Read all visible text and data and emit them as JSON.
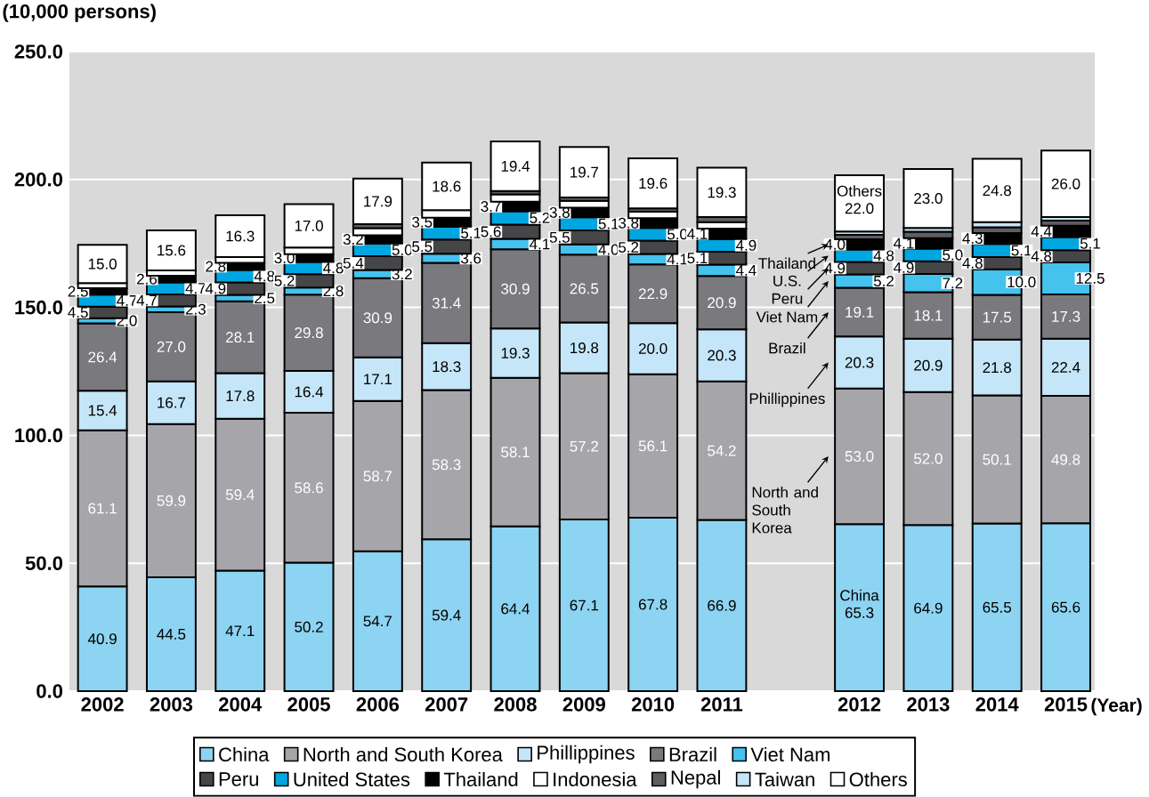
{
  "chart_data": {
    "type": "bar",
    "stacked": true,
    "ylabel": "(10,000 persons)",
    "xlabel": "(Year)",
    "categories": [
      "2002",
      "2003",
      "2004",
      "2005",
      "2006",
      "2007",
      "2008",
      "2009",
      "2010",
      "2011",
      null,
      "2012",
      "2013",
      "2014",
      "2015"
    ],
    "ylim": [
      0,
      250
    ],
    "yticks": [
      {
        "value": 0,
        "label": "0.0"
      },
      {
        "value": 50,
        "label": "50.0"
      },
      {
        "value": 100,
        "label": "100.0"
      },
      {
        "value": 150,
        "label": "150.0"
      },
      {
        "value": 200,
        "label": "200.0"
      },
      {
        "value": 250,
        "label": "250.0"
      }
    ],
    "grid": "y",
    "legend": "bottom",
    "series": [
      {
        "name": "China",
        "color": "#8dd4f2",
        "values": [
          40.9,
          44.5,
          47.1,
          50.2,
          54.7,
          59.4,
          64.4,
          67.1,
          67.8,
          66.9,
          null,
          65.3,
          64.9,
          65.5,
          65.6
        ],
        "value_labels": [
          "40.9",
          "44.5",
          "47.1",
          "50.2",
          "54.7",
          "59.4",
          "64.4",
          "67.1",
          "67.8",
          "66.9",
          null,
          "65.3",
          "64.9",
          "65.5",
          "65.6"
        ]
      },
      {
        "name": "North and South Korea",
        "color": "#a6a6aa",
        "values": [
          61.1,
          59.9,
          59.4,
          58.6,
          58.7,
          58.3,
          58.1,
          57.2,
          56.1,
          54.2,
          null,
          53.0,
          52.0,
          50.1,
          49.8
        ],
        "value_labels": [
          "61.1",
          "59.9",
          "59.4",
          "58.6",
          "58.7",
          "58.3",
          "58.1",
          "57.2",
          "56.1",
          "54.2",
          null,
          "53.0",
          "52.0",
          "50.1",
          "49.8"
        ]
      },
      {
        "name": "Phillippines",
        "color": "#c5e6f8",
        "values": [
          15.4,
          16.7,
          17.8,
          16.4,
          17.1,
          18.3,
          19.3,
          19.8,
          20.0,
          20.3,
          null,
          20.3,
          20.9,
          21.8,
          22.4
        ],
        "value_labels": [
          "15.4",
          "16.7",
          "17.8",
          "16.4",
          "17.1",
          "18.3",
          "19.3",
          "19.8",
          "20.0",
          "20.3",
          null,
          "20.3",
          "20.9",
          "21.8",
          "22.4"
        ]
      },
      {
        "name": "Brazil",
        "color": "#7a797e",
        "values": [
          26.4,
          27.0,
          28.1,
          29.8,
          30.9,
          31.4,
          30.9,
          26.5,
          22.9,
          20.9,
          null,
          19.1,
          18.1,
          17.5,
          17.3
        ],
        "value_labels": [
          "26.4",
          "27.0",
          "28.1",
          "29.8",
          "30.9",
          "31.4",
          "30.9",
          "26.5",
          "22.9",
          "20.9",
          null,
          "19.1",
          "18.1",
          "17.5",
          "17.3"
        ]
      },
      {
        "name": "Viet Nam",
        "color": "#45c2ee",
        "values": [
          2.0,
          2.3,
          2.5,
          2.8,
          3.2,
          3.6,
          4.1,
          4.0,
          4.1,
          4.4,
          null,
          5.2,
          7.2,
          10.0,
          12.5
        ],
        "value_labels": [
          "2.0",
          "2.3",
          "2.5",
          "2.8",
          "3.2",
          "3.6",
          "4.1",
          "4.0",
          "4.1",
          "4.4",
          null,
          "5.2",
          "7.2",
          "10.0",
          "12.5"
        ]
      },
      {
        "name": "Peru",
        "color": "#464648",
        "values": [
          4.5,
          4.7,
          4.9,
          5.2,
          5.4,
          5.5,
          5.6,
          5.5,
          5.2,
          5.1,
          null,
          4.9,
          4.9,
          4.8,
          4.8
        ],
        "value_labels": [
          "4.5",
          "4.7",
          "4.9",
          "5.2",
          "5.4",
          "5.5",
          "5.6",
          "5.5",
          "5.2",
          "5.1",
          null,
          "4.9",
          "4.9",
          "4.8",
          "4.8"
        ]
      },
      {
        "name": "United States",
        "color": "#00a6e0",
        "values": [
          4.7,
          4.7,
          4.8,
          4.8,
          5.0,
          5.1,
          5.2,
          5.1,
          5.0,
          4.9,
          null,
          4.8,
          5.0,
          5.1,
          5.1
        ],
        "value_labels": [
          "4.7",
          "4.7",
          "4.8",
          "4.8",
          "5.0",
          "5.1",
          "5.2",
          "5.1",
          "5.0",
          "4.9",
          null,
          "4.8",
          "5.0",
          "5.1",
          "5.1"
        ]
      },
      {
        "name": "Thailand",
        "color": "#000000",
        "values": [
          2.5,
          2.6,
          2.8,
          3.0,
          3.2,
          3.5,
          3.7,
          3.8,
          3.8,
          4.1,
          null,
          4.0,
          4.1,
          4.3,
          4.4
        ],
        "value_labels": [
          "2.5",
          "2.6",
          "2.8",
          "3.0",
          "3.2",
          "3.5",
          "3.7",
          "3.8",
          "3.8",
          "4.1",
          null,
          "4.0",
          "4.1",
          "4.3",
          "4.4"
        ]
      },
      {
        "name": "Indonesia",
        "color": "#ffffff",
        "values": [
          2.0,
          2.1,
          2.3,
          2.6,
          2.8,
          2.9,
          2.9,
          2.7,
          2.5,
          2.5,
          null,
          null,
          null,
          null,
          null
        ]
      },
      {
        "name": "Nepal",
        "color": "#5e5e60",
        "values": [
          null,
          null,
          null,
          null,
          1.5,
          null,
          1.3,
          1.3,
          1.3,
          2.0,
          null,
          1.8,
          2.5,
          2.2,
          2.0
        ]
      },
      {
        "name": "Taiwan",
        "color": "#c5e6f8",
        "values": [
          null,
          null,
          null,
          null,
          null,
          null,
          null,
          null,
          null,
          null,
          null,
          1.3,
          1.5,
          2.0,
          1.4
        ]
      },
      {
        "name": "Others",
        "color": "#ffffff",
        "values": [
          15.0,
          15.6,
          16.3,
          17.0,
          17.9,
          18.6,
          19.4,
          19.7,
          19.6,
          19.3,
          null,
          22.0,
          23.0,
          24.8,
          26.0
        ],
        "value_labels": [
          "15.0",
          "15.6",
          "16.3",
          "17.0",
          "17.9",
          "18.6",
          "19.4",
          "19.7",
          "19.6",
          "19.3",
          null,
          "22.0",
          "23.0",
          "24.8",
          "26.0"
        ]
      }
    ],
    "annotations": [
      "China",
      "North and South Korea",
      "Phillippines",
      "Brazil",
      "Viet Nam",
      "Peru",
      "U.S.",
      "Thailand",
      "Others"
    ]
  }
}
